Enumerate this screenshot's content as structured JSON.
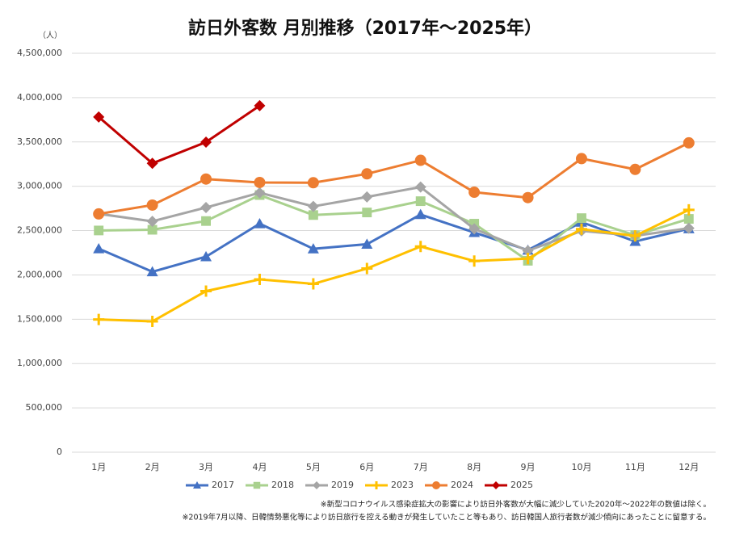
{
  "chart_data": {
    "type": "line",
    "title": "訪日外客数 月別推移（2017年～2025年）",
    "y_unit": "（人）",
    "categories": [
      "1月",
      "2月",
      "3月",
      "4月",
      "5月",
      "6月",
      "7月",
      "8月",
      "9月",
      "10月",
      "11月",
      "12月"
    ],
    "ylim": [
      0,
      4500000
    ],
    "yticks": [
      0,
      {
        "value": 500000,
        "label": "500,000"
      },
      {
        "value": 1000000,
        "label": "1,000,000"
      },
      {
        "value": 1500000,
        "label": "1,500,000"
      },
      {
        "value": 2000000,
        "label": "2,000,000"
      },
      {
        "value": 2500000,
        "label": "2,500,000"
      },
      {
        "value": 3000000,
        "label": "3,000,000"
      },
      {
        "value": 3500000,
        "label": "3,500,000"
      },
      {
        "value": 4000000,
        "label": "4,000,000"
      },
      {
        "value": 4500000,
        "label": "4,500,000"
      }
    ],
    "grid": true,
    "legend": "bottom",
    "series": [
      {
        "name": "2017",
        "color": "#4472c4",
        "marker": "triangle",
        "values": [
          2295700,
          2035800,
          2205700,
          2578000,
          2294700,
          2346500,
          2681000,
          2478200,
          2279700,
          2595100,
          2378000,
          2521000
        ]
      },
      {
        "name": "2018",
        "color": "#a9d18e",
        "marker": "square",
        "values": [
          2501400,
          2509300,
          2607900,
          2900700,
          2675400,
          2704600,
          2832000,
          2578000,
          2159600,
          2640600,
          2447800,
          2632000
        ]
      },
      {
        "name": "2019",
        "color": "#a5a5a5",
        "marker": "diamond",
        "values": [
          2689300,
          2604300,
          2760100,
          2926700,
          2773100,
          2880000,
          2991200,
          2520100,
          2272900,
          2496600,
          2441300,
          2526400
        ]
      },
      {
        "name": "2023",
        "color": "#ffc000",
        "marker": "plus",
        "values": [
          1497300,
          1475500,
          1817500,
          1949100,
          1898900,
          2072300,
          2320600,
          2156900,
          2184300,
          2516500,
          2440600,
          2734000
        ]
      },
      {
        "name": "2024",
        "color": "#ed7d31",
        "marker": "circle",
        "values": [
          2688100,
          2788000,
          3081600,
          3042900,
          3040100,
          3140000,
          3292500,
          2932900,
          2872000,
          3312200,
          3190300,
          3489800
        ]
      },
      {
        "name": "2025",
        "color": "#c00000",
        "marker": "diamond",
        "values": [
          3781600,
          3258400,
          3497600,
          3908900,
          null,
          null,
          null,
          null,
          null,
          null,
          null,
          null
        ]
      }
    ],
    "notes": [
      "※新型コロナウイルス感染症拡大の影響により訪日外客数が大幅に減少していた2020年～2022年の数値は除く。",
      "※2019年7月以降、日韓情勢悪化等により訪日旅行を控える動きが発生していたこと等もあり、訪日韓国人旅行者数が減少傾向にあったことに留意する。"
    ]
  }
}
